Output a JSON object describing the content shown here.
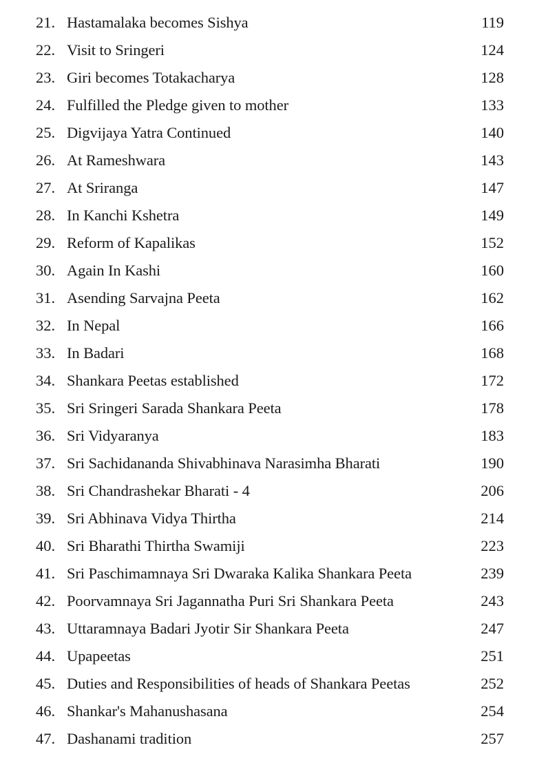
{
  "toc": [
    {
      "num": "21.",
      "title": "Hastamalaka becomes Sishya",
      "page": "119"
    },
    {
      "num": "22.",
      "title": "Visit to Sringeri",
      "page": "124"
    },
    {
      "num": "23.",
      "title": "Giri becomes Totakacharya",
      "page": "128"
    },
    {
      "num": "24.",
      "title": "Fulfilled the Pledge given to mother",
      "page": "133"
    },
    {
      "num": "25.",
      "title": "Digvijaya Yatra Continued",
      "page": "140"
    },
    {
      "num": "26.",
      "title": "At Rameshwara",
      "page": "143"
    },
    {
      "num": "27.",
      "title": "At Sriranga",
      "page": "147"
    },
    {
      "num": "28.",
      "title": "In Kanchi Kshetra",
      "page": "149"
    },
    {
      "num": "29.",
      "title": "Reform of Kapalikas",
      "page": "152"
    },
    {
      "num": "30.",
      "title": "Again In Kashi",
      "page": "160"
    },
    {
      "num": "31.",
      "title": "Asending Sarvajna Peeta",
      "page": "162"
    },
    {
      "num": "32.",
      "title": "In Nepal",
      "page": "166"
    },
    {
      "num": "33.",
      "title": "In Badari",
      "page": "168"
    },
    {
      "num": "34.",
      "title": "Shankara Peetas established",
      "page": "172"
    },
    {
      "num": "35.",
      "title": "Sri Sringeri Sarada Shankara Peeta",
      "page": "178"
    },
    {
      "num": "36.",
      "title": "Sri Vidyaranya",
      "page": "183"
    },
    {
      "num": "37.",
      "title": "Sri Sachidananda Shivabhinava Narasimha Bharati",
      "page": "190"
    },
    {
      "num": "38.",
      "title": "Sri Chandrashekar Bharati - 4",
      "page": "206"
    },
    {
      "num": "39.",
      "title": "Sri Abhinava Vidya Thirtha",
      "page": "214"
    },
    {
      "num": "40.",
      "title": "Sri Bharathi Thirtha Swamiji",
      "page": "223"
    },
    {
      "num": "41.",
      "title": "Sri Paschimamnaya Sri Dwaraka Kalika Shankara Peeta",
      "page": "239"
    },
    {
      "num": "42.",
      "title": "Poorvamnaya Sri Jagannatha Puri Sri Shankara Peeta",
      "page": "243"
    },
    {
      "num": "43.",
      "title": "Uttaramnaya Badari Jyotir Sir Shankara Peeta",
      "page": "247"
    },
    {
      "num": "44.",
      "title": "Upapeetas",
      "page": "251"
    },
    {
      "num": "45.",
      "title": "Duties and Responsibilities of heads of Shankara Peetas",
      "page": "252"
    },
    {
      "num": "46.",
      "title": "Shankar's Mahanushasana",
      "page": "254"
    },
    {
      "num": "47.",
      "title": "Dashanami tradition",
      "page": "257"
    }
  ]
}
